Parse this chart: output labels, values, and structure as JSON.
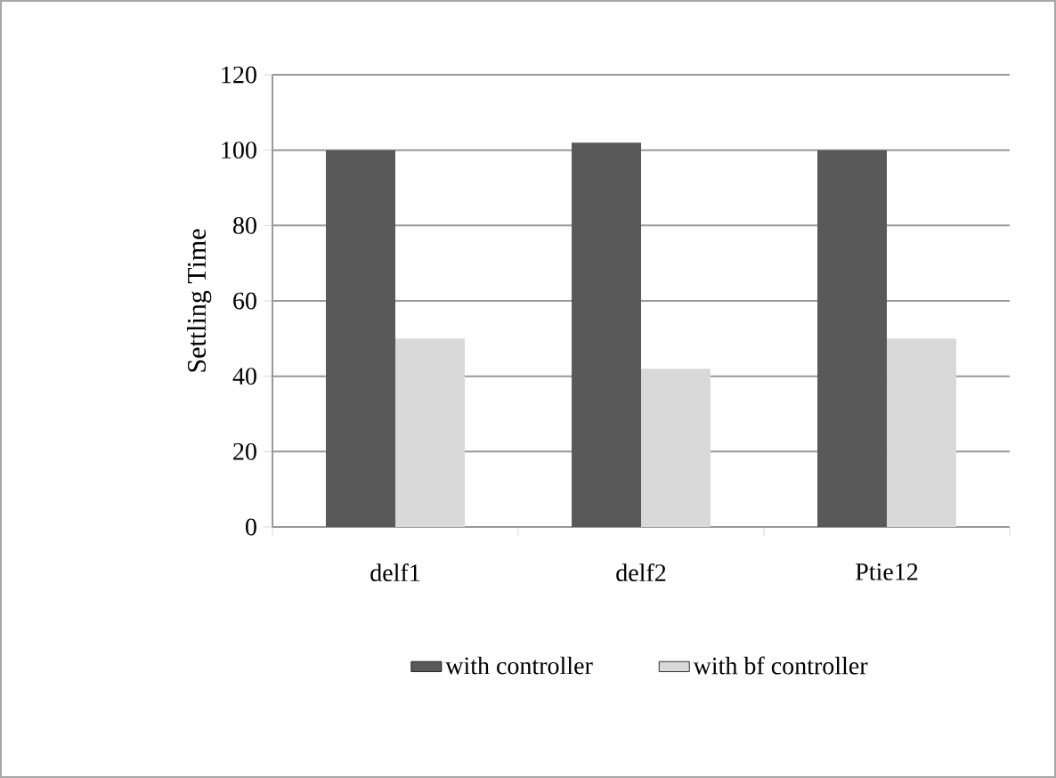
{
  "chart_data": {
    "type": "bar",
    "ylabel": "Settling Time",
    "categories": [
      "delf1",
      "delf2",
      "Ptie12"
    ],
    "series": [
      {
        "name": "with controller",
        "color": "#595959",
        "values": [
          100,
          102,
          100
        ]
      },
      {
        "name": "with bf controller",
        "color": "#d9d9d9",
        "values": [
          50,
          42,
          50
        ]
      }
    ],
    "ylim": [
      0,
      120
    ],
    "yticks": [
      0,
      20,
      40,
      60,
      80,
      100,
      120
    ],
    "grid": "y",
    "legend": "bottom"
  }
}
